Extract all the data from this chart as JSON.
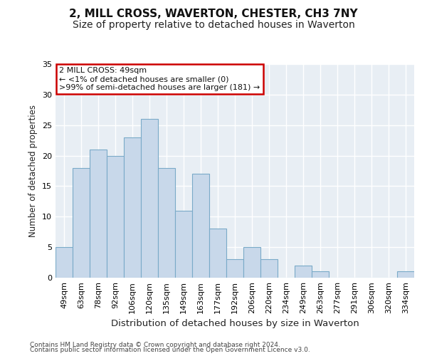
{
  "title1": "2, MILL CROSS, WAVERTON, CHESTER, CH3 7NY",
  "title2": "Size of property relative to detached houses in Waverton",
  "xlabel": "Distribution of detached houses by size in Waverton",
  "ylabel": "Number of detached properties",
  "categories": [
    "49sqm",
    "63sqm",
    "78sqm",
    "92sqm",
    "106sqm",
    "120sqm",
    "135sqm",
    "149sqm",
    "163sqm",
    "177sqm",
    "192sqm",
    "206sqm",
    "220sqm",
    "234sqm",
    "249sqm",
    "263sqm",
    "277sqm",
    "291sqm",
    "306sqm",
    "320sqm",
    "334sqm"
  ],
  "values": [
    5,
    18,
    21,
    20,
    23,
    26,
    18,
    11,
    17,
    8,
    3,
    5,
    3,
    0,
    2,
    1,
    0,
    0,
    0,
    0,
    1
  ],
  "bar_color": "#c8d8ea",
  "bar_edge_color": "#7aaac8",
  "annotation_text_line1": "2 MILL CROSS: 49sqm",
  "annotation_text_line2": "← <1% of detached houses are smaller (0)",
  "annotation_text_line3": ">99% of semi-detached houses are larger (181) →",
  "annotation_box_facecolor": "#ffffff",
  "annotation_box_edgecolor": "#cc0000",
  "ylim": [
    0,
    35
  ],
  "yticks": [
    0,
    5,
    10,
    15,
    20,
    25,
    30,
    35
  ],
  "plot_bg_color": "#e8eef4",
  "fig_bg_color": "#ffffff",
  "grid_color": "#ffffff",
  "footer1": "Contains HM Land Registry data © Crown copyright and database right 2024.",
  "footer2": "Contains public sector information licensed under the Open Government Licence v3.0.",
  "title1_fontsize": 11,
  "title2_fontsize": 10,
  "xlabel_fontsize": 9.5,
  "ylabel_fontsize": 8.5,
  "tick_fontsize": 8,
  "footer_fontsize": 6.5
}
